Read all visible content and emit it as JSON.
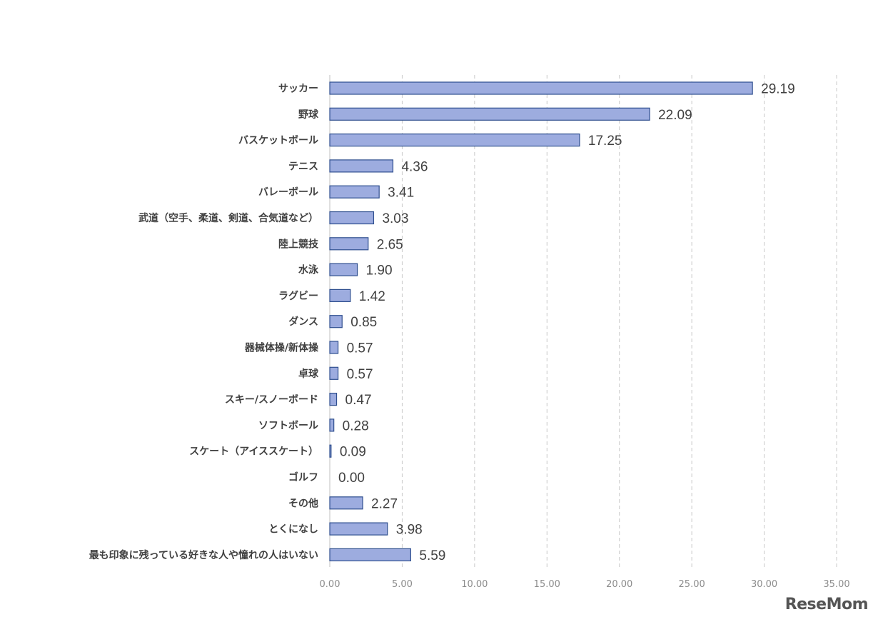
{
  "chart_data": {
    "type": "bar",
    "orientation": "horizontal",
    "categories": [
      "サッカー",
      "野球",
      "バスケットボール",
      "テニス",
      "バレーボール",
      "武道（空手、柔道、剣道、合気道など）",
      "陸上競技",
      "水泳",
      "ラグビー",
      "ダンス",
      "器械体操/新体操",
      "卓球",
      "スキー/スノーボード",
      "ソフトボール",
      "スケート（アイススケート）",
      "ゴルフ",
      "その他",
      "とくになし",
      "最も印象に残っている好きな人や憧れの人はいない"
    ],
    "values": [
      29.19,
      22.09,
      17.25,
      4.36,
      3.41,
      3.03,
      2.65,
      1.9,
      1.42,
      0.85,
      0.57,
      0.57,
      0.47,
      0.28,
      0.09,
      0.0,
      2.27,
      3.98,
      5.59
    ],
    "value_labels": [
      "29.19",
      "22.09",
      "17.25",
      "4.36",
      "3.41",
      "3.03",
      "2.65",
      "1.90",
      "1.42",
      "0.85",
      "0.57",
      "0.57",
      "0.47",
      "0.28",
      "0.09",
      "0.00",
      "2.27",
      "3.98",
      "5.59"
    ],
    "xlim": [
      0,
      35
    ],
    "xticks": [
      "0.00",
      "5.00",
      "10.00",
      "15.00",
      "20.00",
      "25.00",
      "30.00",
      "35.00"
    ],
    "grid": "vertical dashed",
    "legend": "none",
    "colors": {
      "bar_fill": "#9dacdf",
      "bar_stroke": "#2f4f8f",
      "grid": "#c8c8c8"
    }
  },
  "watermark": "ReseMom"
}
